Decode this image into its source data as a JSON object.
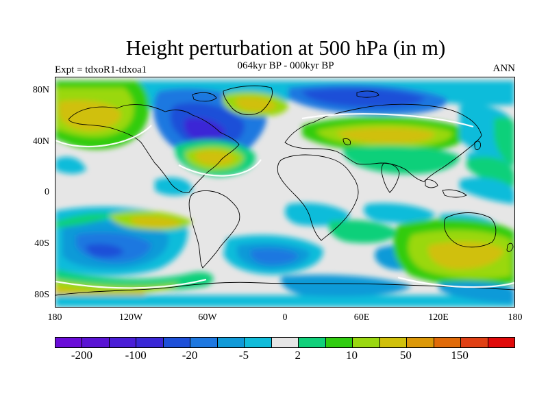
{
  "title": "Height perturbation at 500 hPa (in m)",
  "subtitle": "064kyr BP - 000kyr BP",
  "left_string": "Expt = tdxoR1-tdxoa1",
  "right_string": "ANN",
  "map": {
    "projection": "cylindrical equidistant",
    "lon_range": [
      -180,
      180
    ],
    "lat_range": [
      -90,
      90
    ],
    "lat_ticks": [
      "80N",
      "40N",
      "0",
      "40S",
      "80S"
    ],
    "lon_ticks": [
      "180",
      "120W",
      "60W",
      "0",
      "60E",
      "120E",
      "180"
    ],
    "fill_type": "filled contours"
  },
  "colorbar": {
    "colors": [
      "#6a0dd8",
      "#5a14d4",
      "#4a1ed6",
      "#3a28d6",
      "#1e50d8",
      "#1e78e0",
      "#109ad8",
      "#10bcda",
      "#e6e6e6",
      "#10d07a",
      "#30cc10",
      "#9ad810",
      "#d0c00a",
      "#dc9808",
      "#e06a08",
      "#e04014",
      "#e00a0a"
    ],
    "labels": [
      "-200",
      "-100",
      "-20",
      "-5",
      "2",
      "10",
      "50",
      "150"
    ],
    "label_positions": [
      1,
      3,
      5,
      7,
      9,
      11,
      13,
      15
    ]
  }
}
